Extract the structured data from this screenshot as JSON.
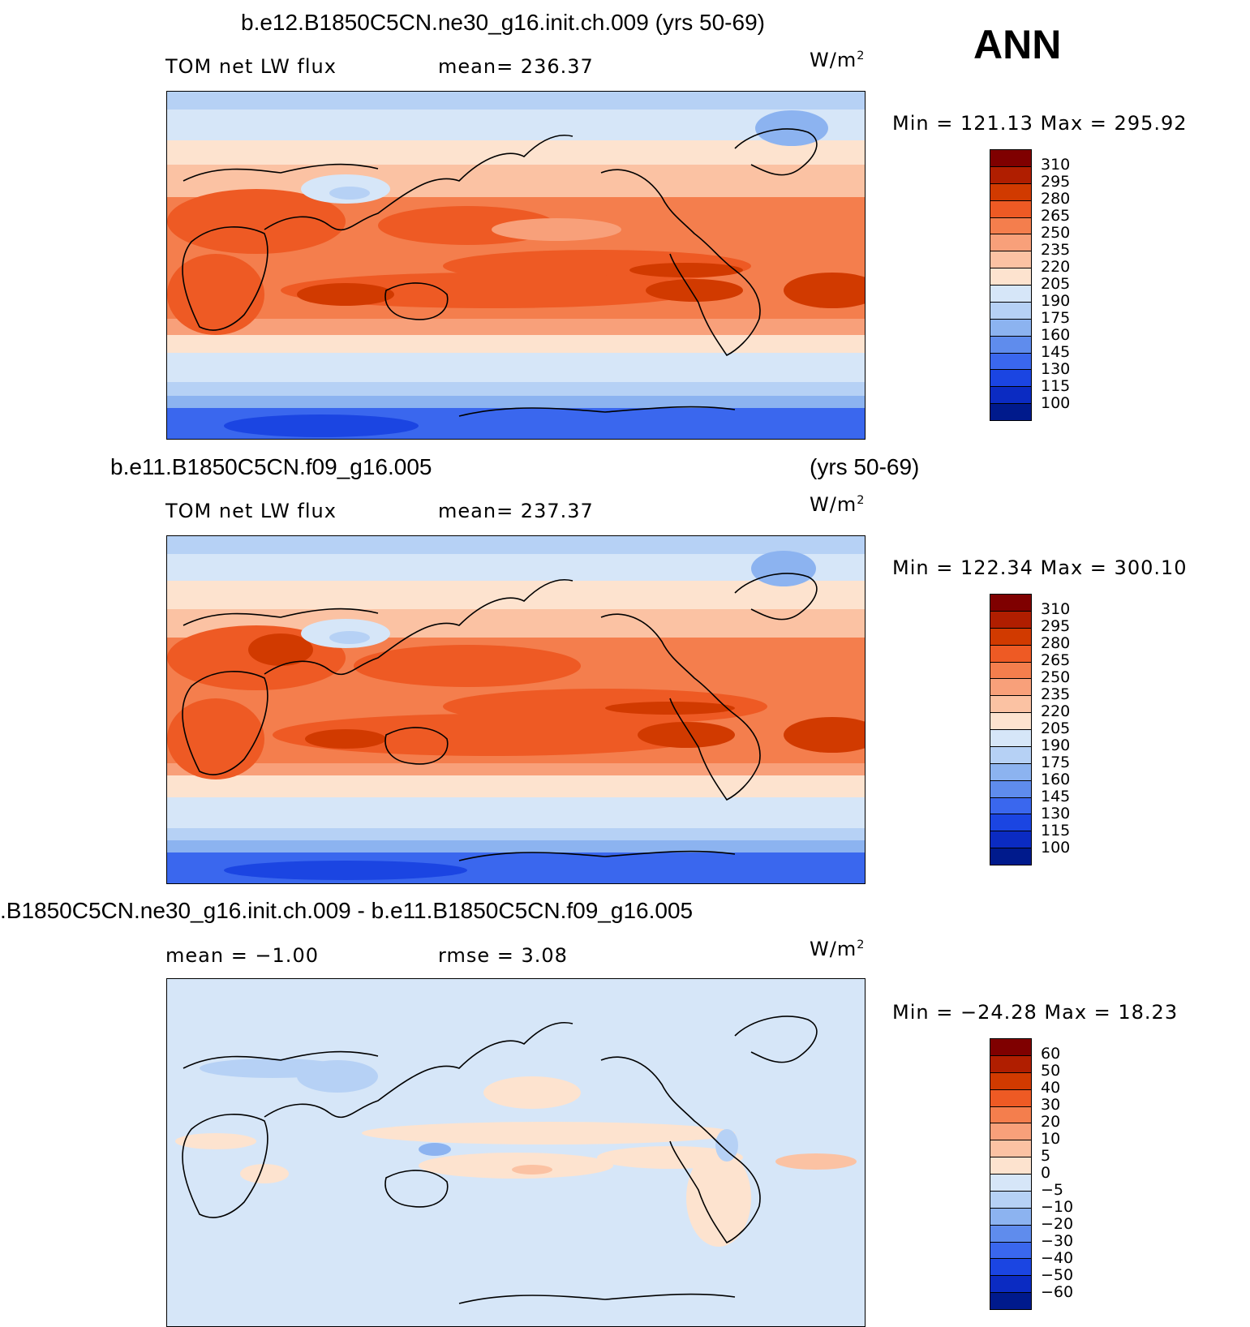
{
  "season": "ANN",
  "colorbar_warm": [
    "#7f0000",
    "#b01e00",
    "#d13a00",
    "#ee5a24",
    "#f47e4d",
    "#f8a07a",
    "#fbc2a3",
    "#fde3cf",
    "#d6e6f8",
    "#b6d1f5",
    "#8cb3f0",
    "#5f8ced",
    "#3a67ee",
    "#1b45e2",
    "#0b2bc2",
    "#001a8c"
  ],
  "colorbar_diff": [
    "#7f0000",
    "#b01e00",
    "#d13a00",
    "#ee5a24",
    "#f47e4d",
    "#f8a07a",
    "#fbc2a3",
    "#fde3cf",
    "#d6e6f8",
    "#b6d1f5",
    "#8cb3f0",
    "#5f8ced",
    "#3a67ee",
    "#1b45e2",
    "#0b2bc2",
    "#001a8c"
  ],
  "panels": [
    {
      "id": "test",
      "title": "b.e12.B1850C5CN.ne30_g16.init.ch.009 (yrs 50-69)",
      "left_label": "TOM net LW flux",
      "mid_label": "mean=  236.37",
      "units": "W/m",
      "units_sup": "2",
      "minmax": "Min  =  121.13  Max  =  295.92",
      "ticks": [
        "310",
        "295",
        "280",
        "265",
        "250",
        "235",
        "220",
        "205",
        "190",
        "175",
        "160",
        "145",
        "130",
        "115",
        "100"
      ]
    },
    {
      "id": "control",
      "title": "b.e11.B1850C5CN.f09_g16.005",
      "title_right": "(yrs 50-69)",
      "left_label": "TOM net LW flux",
      "mid_label": "mean=  237.37",
      "units": "W/m",
      "units_sup": "2",
      "minmax": "Min  =  122.34  Max  =  300.10",
      "ticks": [
        "310",
        "295",
        "280",
        "265",
        "250",
        "235",
        "220",
        "205",
        "190",
        "175",
        "160",
        "145",
        "130",
        "115",
        "100"
      ]
    },
    {
      "id": "diff",
      "title": ".B1850C5CN.ne30_g16.init.ch.009 - b.e11.B1850C5CN.f09_g16.005",
      "left_label": "mean =    −1.00",
      "mid_label": "rmse  =     3.08",
      "units": "W/m",
      "units_sup": "2",
      "minmax": "Min  =  −24.28  Max  =    18.23",
      "ticks": [
        "60",
        "50",
        "40",
        "30",
        "20",
        "10",
        "5",
        "0",
        "−5",
        "−10",
        "−20",
        "−30",
        "−40",
        "−50",
        "−60"
      ]
    }
  ]
}
